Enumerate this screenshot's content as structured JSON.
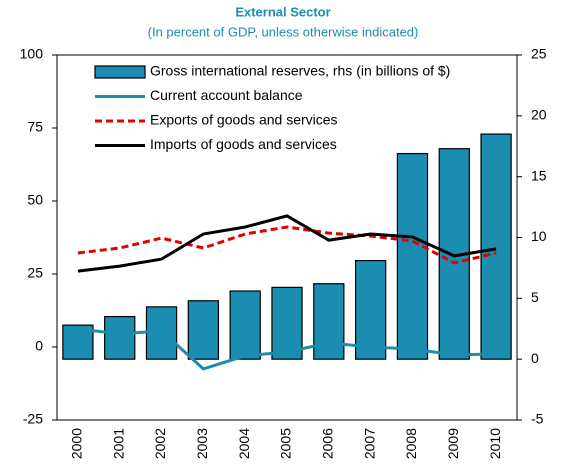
{
  "chart_data": {
    "type": "combo",
    "title": "External Sector",
    "subtitle": "(In percent of GDP, unless otherwise indicated)",
    "categories": [
      "2000",
      "2001",
      "2002",
      "2003",
      "2004",
      "2005",
      "2006",
      "2007",
      "2008",
      "2009",
      "2010"
    ],
    "ylim": [
      -25,
      100
    ],
    "yticks": [
      -25,
      0,
      25,
      50,
      75,
      100
    ],
    "y2lim": [
      -5,
      25
    ],
    "y2ticks": [
      -5,
      0,
      5,
      10,
      15,
      20,
      25
    ],
    "legend": "upper left",
    "series": [
      {
        "name": "Gross international reserves, rhs (in billions of $)",
        "type": "bar",
        "axis": "y2",
        "color": "#1b8db0",
        "values": [
          2.8,
          3.5,
          4.3,
          4.8,
          5.6,
          5.9,
          6.2,
          8.1,
          16.9,
          17.3,
          18.5
        ]
      },
      {
        "name": "Current account balance",
        "type": "line",
        "color": "#1b8db0",
        "dash": false,
        "values": [
          6.2,
          4.5,
          5.5,
          -7.5,
          -3,
          -1.7,
          1.4,
          0,
          -0.7,
          -2.7,
          -2.4
        ]
      },
      {
        "name": "Exports of goods and services",
        "type": "line",
        "color": "#e00000",
        "dash": true,
        "values": [
          32.2,
          33.9,
          37.3,
          33.9,
          38.7,
          41.1,
          39,
          38,
          36.3,
          28.8,
          32.2
        ]
      },
      {
        "name": "Imports of goods and services",
        "type": "line",
        "color": "#000000",
        "dash": false,
        "values": [
          26,
          27.7,
          30.1,
          38.7,
          41.1,
          44.9,
          36.6,
          38.7,
          37.7,
          31.2,
          33.6
        ]
      }
    ]
  }
}
